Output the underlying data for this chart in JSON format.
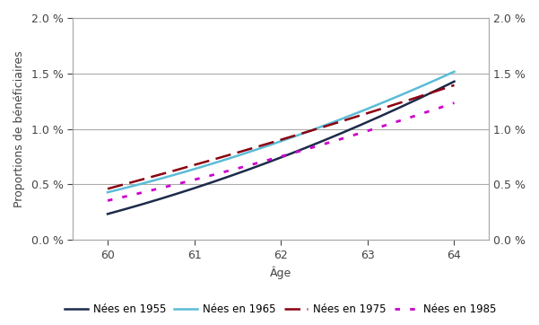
{
  "title": "",
  "xlabel": "Âge",
  "ylabel": "Proportions de bénéficiaires",
  "xlim": [
    59.6,
    64.4
  ],
  "ylim": [
    0.0,
    0.02
  ],
  "xticks": [
    60,
    61,
    62,
    63,
    64
  ],
  "yticks": [
    0.0,
    0.005,
    0.01,
    0.015,
    0.02
  ],
  "ytick_labels": [
    "0.0 %",
    "0.5 %",
    "1.0 %",
    "1.5 %",
    "2.0 %"
  ],
  "series": [
    {
      "label": "Nées en 1955",
      "x": [
        60,
        60.5,
        61,
        61.5,
        62,
        62.5,
        63,
        63.5,
        64
      ],
      "y": [
        0.0027,
        0.0034,
        0.0043,
        0.0056,
        0.0073,
        0.0093,
        0.0112,
        0.0126,
        0.0138
      ],
      "color": "#1c2b4a",
      "linestyle": "solid",
      "linewidth": 1.8,
      "dashes": null
    },
    {
      "label": "Nées en 1965",
      "x": [
        60,
        60.5,
        61,
        61.5,
        62,
        62.5,
        63,
        63.5,
        64
      ],
      "y": [
        0.0044,
        0.0053,
        0.0063,
        0.0074,
        0.0088,
        0.0105,
        0.012,
        0.0135,
        0.015
      ],
      "color": "#5bbcd6",
      "linestyle": "solid",
      "linewidth": 1.8,
      "dashes": null
    },
    {
      "label": "Nées en 1975",
      "x": [
        60,
        60.5,
        61,
        61.5,
        62,
        62.5,
        63,
        63.5,
        64
      ],
      "y": [
        0.0048,
        0.0056,
        0.0066,
        0.0077,
        0.009,
        0.0103,
        0.0117,
        0.0128,
        0.0137
      ],
      "color": "#8b0010",
      "linestyle": "dashed",
      "linewidth": 1.8,
      "dashes": [
        7,
        3
      ]
    },
    {
      "label": "Nées en 1985",
      "x": [
        60,
        60.5,
        61,
        61.5,
        62,
        62.5,
        63,
        63.5,
        64
      ],
      "y": [
        0.0037,
        0.0044,
        0.0053,
        0.0063,
        0.0075,
        0.0088,
        0.01,
        0.0111,
        0.0122
      ],
      "color": "#cc00cc",
      "linestyle": "dotted",
      "linewidth": 2.0,
      "dashes": [
        2,
        4
      ]
    }
  ],
  "legend_loc": "lower center",
  "legend_ncol": 4,
  "background_color": "#ffffff",
  "grid_color": "#aaaaaa",
  "tick_color": "#444444",
  "label_fontsize": 9,
  "tick_fontsize": 9,
  "legend_fontsize": 8.5
}
